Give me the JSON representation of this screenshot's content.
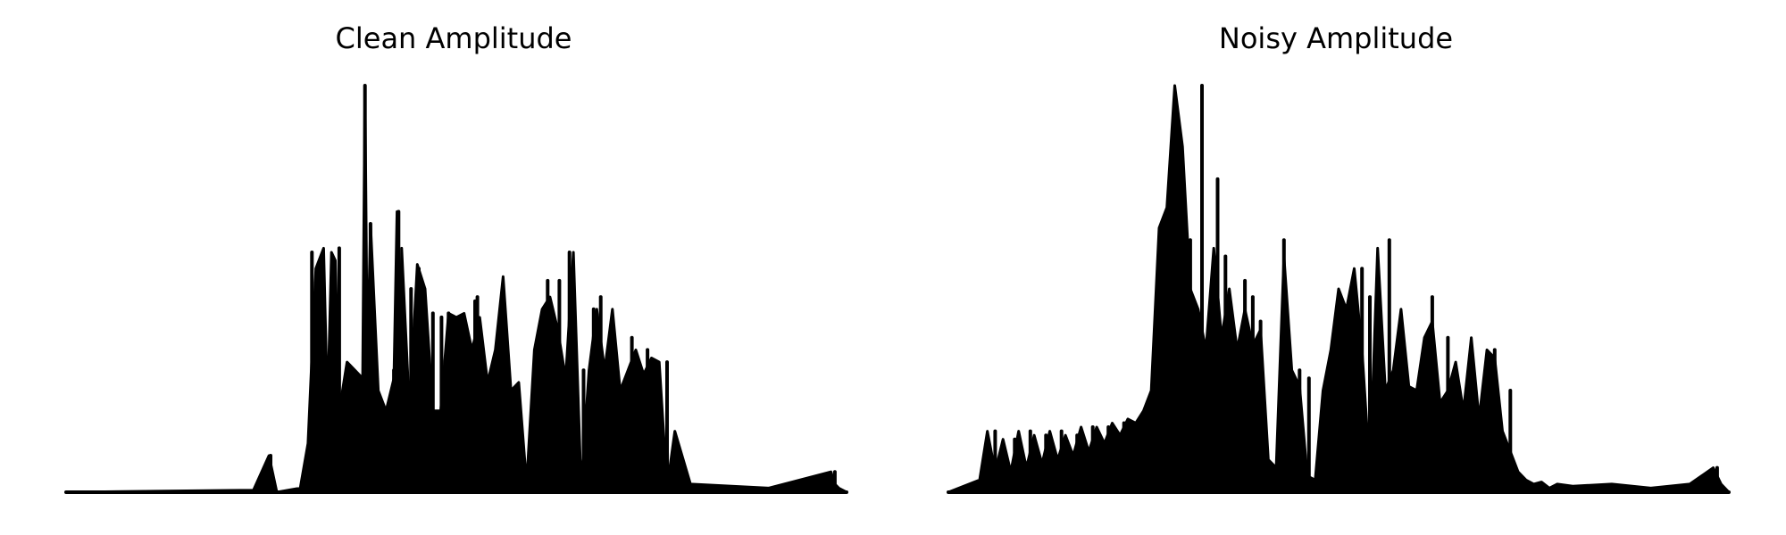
{
  "chart_data": [
    {
      "type": "area",
      "title": "Clean Amplitude",
      "xlabel": "",
      "ylabel": "",
      "x_range": [
        0,
        1
      ],
      "ylim": [
        0,
        1
      ],
      "axes": "off",
      "grid": false,
      "color": "#000000",
      "envelope_x": [
        0.0,
        0.24,
        0.26,
        0.27,
        0.3,
        0.31,
        0.32,
        0.33,
        0.335,
        0.34,
        0.345,
        0.35,
        0.36,
        0.37,
        0.38,
        0.383,
        0.386,
        0.39,
        0.4,
        0.41,
        0.42,
        0.424,
        0.427,
        0.43,
        0.44,
        0.45,
        0.46,
        0.47,
        0.48,
        0.49,
        0.5,
        0.51,
        0.52,
        0.53,
        0.54,
        0.55,
        0.56,
        0.57,
        0.58,
        0.59,
        0.6,
        0.61,
        0.62,
        0.63,
        0.64,
        0.65,
        0.66,
        0.67,
        0.68,
        0.69,
        0.7,
        0.71,
        0.72,
        0.73,
        0.74,
        0.75,
        0.76,
        0.77,
        0.78,
        0.8,
        0.9,
        0.98,
        0.985,
        0.99,
        1.0
      ],
      "envelope_y": [
        0.0,
        0.005,
        0.09,
        0.0,
        0.01,
        0.12,
        0.55,
        0.6,
        0.2,
        0.59,
        0.57,
        0.2,
        0.32,
        0.3,
        0.28,
        1.0,
        0.3,
        0.66,
        0.25,
        0.2,
        0.28,
        0.69,
        0.25,
        0.6,
        0.2,
        0.56,
        0.5,
        0.2,
        0.2,
        0.44,
        0.43,
        0.44,
        0.35,
        0.43,
        0.27,
        0.35,
        0.53,
        0.25,
        0.27,
        0.02,
        0.35,
        0.45,
        0.48,
        0.4,
        0.28,
        0.59,
        0.01,
        0.3,
        0.45,
        0.3,
        0.45,
        0.25,
        0.3,
        0.35,
        0.29,
        0.33,
        0.32,
        0.01,
        0.15,
        0.02,
        0.01,
        0.05,
        0.02,
        0.01,
        0.0
      ],
      "spike_x": [
        0.262,
        0.315,
        0.35,
        0.383,
        0.39,
        0.42,
        0.426,
        0.431,
        0.442,
        0.452,
        0.46,
        0.47,
        0.481,
        0.49,
        0.5,
        0.524,
        0.527,
        0.6,
        0.617,
        0.632,
        0.645,
        0.655,
        0.663,
        0.676,
        0.685,
        0.7,
        0.725,
        0.735,
        0.745,
        0.77,
        0.985
      ],
      "spike_y": [
        0.09,
        0.59,
        0.6,
        1.0,
        0.66,
        0.3,
        0.69,
        0.45,
        0.5,
        0.55,
        0.48,
        0.44,
        0.43,
        0.44,
        0.38,
        0.47,
        0.48,
        0.18,
        0.52,
        0.52,
        0.59,
        0.2,
        0.3,
        0.45,
        0.48,
        0.35,
        0.38,
        0.31,
        0.35,
        0.32,
        0.05
      ],
      "baseline": 0.0
    },
    {
      "type": "area",
      "title": "Noisy Amplitude",
      "xlabel": "",
      "ylabel": "",
      "x_range": [
        0,
        1
      ],
      "ylim": [
        0,
        1
      ],
      "axes": "off",
      "grid": false,
      "color": "#000000",
      "envelope_x": [
        0.0,
        0.04,
        0.05,
        0.06,
        0.07,
        0.08,
        0.09,
        0.1,
        0.11,
        0.12,
        0.13,
        0.14,
        0.15,
        0.16,
        0.17,
        0.18,
        0.19,
        0.2,
        0.21,
        0.22,
        0.23,
        0.24,
        0.25,
        0.26,
        0.27,
        0.28,
        0.29,
        0.3,
        0.31,
        0.32,
        0.33,
        0.34,
        0.35,
        0.36,
        0.37,
        0.38,
        0.39,
        0.4,
        0.41,
        0.42,
        0.43,
        0.44,
        0.45,
        0.46,
        0.47,
        0.48,
        0.49,
        0.5,
        0.51,
        0.52,
        0.53,
        0.54,
        0.55,
        0.56,
        0.57,
        0.58,
        0.59,
        0.6,
        0.61,
        0.62,
        0.63,
        0.64,
        0.65,
        0.66,
        0.67,
        0.68,
        0.69,
        0.7,
        0.71,
        0.72,
        0.73,
        0.74,
        0.75,
        0.76,
        0.77,
        0.78,
        0.8,
        0.85,
        0.9,
        0.95,
        0.98,
        0.99,
        1.0
      ],
      "envelope_y": [
        0.0,
        0.03,
        0.15,
        0.05,
        0.13,
        0.05,
        0.15,
        0.06,
        0.14,
        0.07,
        0.15,
        0.08,
        0.14,
        0.09,
        0.16,
        0.1,
        0.16,
        0.12,
        0.17,
        0.14,
        0.18,
        0.17,
        0.2,
        0.25,
        0.65,
        0.7,
        1.0,
        0.85,
        0.5,
        0.45,
        0.35,
        0.6,
        0.38,
        0.5,
        0.35,
        0.45,
        0.36,
        0.4,
        0.08,
        0.06,
        0.58,
        0.3,
        0.26,
        0.04,
        0.03,
        0.25,
        0.35,
        0.5,
        0.45,
        0.55,
        0.35,
        0.05,
        0.6,
        0.25,
        0.3,
        0.45,
        0.26,
        0.25,
        0.38,
        0.42,
        0.22,
        0.25,
        0.32,
        0.2,
        0.38,
        0.18,
        0.35,
        0.33,
        0.15,
        0.1,
        0.05,
        0.03,
        0.02,
        0.025,
        0.01,
        0.02,
        0.015,
        0.02,
        0.01,
        0.02,
        0.06,
        0.02,
        0.0
      ],
      "spike_x": [
        0.06,
        0.085,
        0.105,
        0.125,
        0.145,
        0.165,
        0.185,
        0.205,
        0.225,
        0.245,
        0.3,
        0.31,
        0.325,
        0.345,
        0.355,
        0.38,
        0.39,
        0.4,
        0.43,
        0.45,
        0.462,
        0.52,
        0.53,
        0.54,
        0.55,
        0.565,
        0.58,
        0.62,
        0.64,
        0.7,
        0.72,
        0.985
      ],
      "spike_y": [
        0.15,
        0.13,
        0.15,
        0.14,
        0.15,
        0.14,
        0.16,
        0.16,
        0.17,
        0.18,
        0.7,
        0.62,
        1.0,
        0.77,
        0.58,
        0.52,
        0.48,
        0.42,
        0.62,
        0.3,
        0.28,
        0.5,
        0.55,
        0.48,
        0.45,
        0.62,
        0.4,
        0.48,
        0.38,
        0.35,
        0.25,
        0.06
      ],
      "baseline": 0.0
    }
  ]
}
